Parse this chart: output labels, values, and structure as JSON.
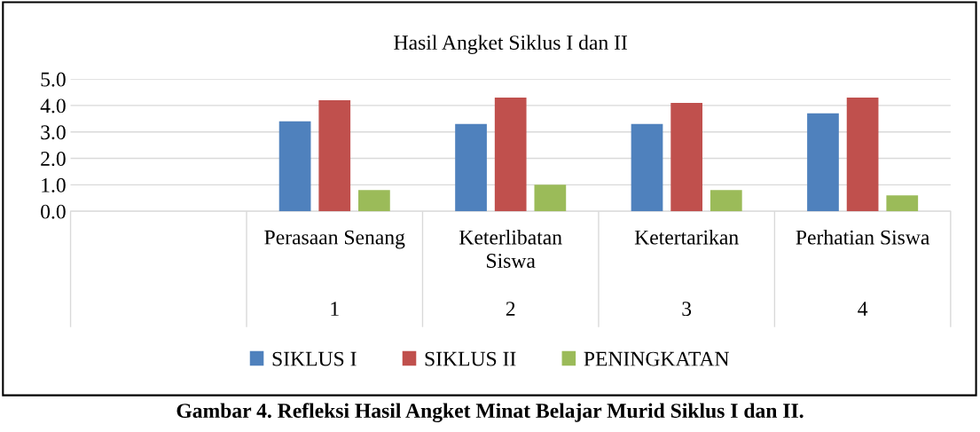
{
  "chart_data": {
    "type": "bar",
    "title": "Hasil Angket Siklus I dan II",
    "categories": [
      null,
      "Perasaan Senang\n1",
      "Keterlibatan\nSiswa\n2",
      "Ketertarikan\n3",
      "Perhatian Siswa\n4"
    ],
    "series": [
      {
        "name": "SIKLUS I",
        "color": "#4f81bd",
        "values": [
          null,
          3.4,
          3.3,
          3.3,
          3.7
        ]
      },
      {
        "name": "SIKLUS II",
        "color": "#c0504d",
        "values": [
          null,
          4.2,
          4.3,
          4.1,
          4.3
        ]
      },
      {
        "name": "PENINGKATAN",
        "color": "#9bbb59",
        "values": [
          null,
          0.8,
          1.0,
          0.8,
          0.6
        ]
      }
    ],
    "ylim": [
      0,
      5
    ],
    "yticks": [
      {
        "value": 0,
        "label": "0.0"
      },
      {
        "value": 1,
        "label": "1.0"
      },
      {
        "value": 2,
        "label": "2.0"
      },
      {
        "value": 3,
        "label": "3.0"
      },
      {
        "value": 4,
        "label": "4.0"
      },
      {
        "value": 5,
        "label": "5.0"
      }
    ],
    "grid": "y",
    "legend": "bottom",
    "annotations": [
      "Gambar 4. Refleksi Hasil Angket Minat Belajar Murid Siklus I dan II."
    ]
  }
}
